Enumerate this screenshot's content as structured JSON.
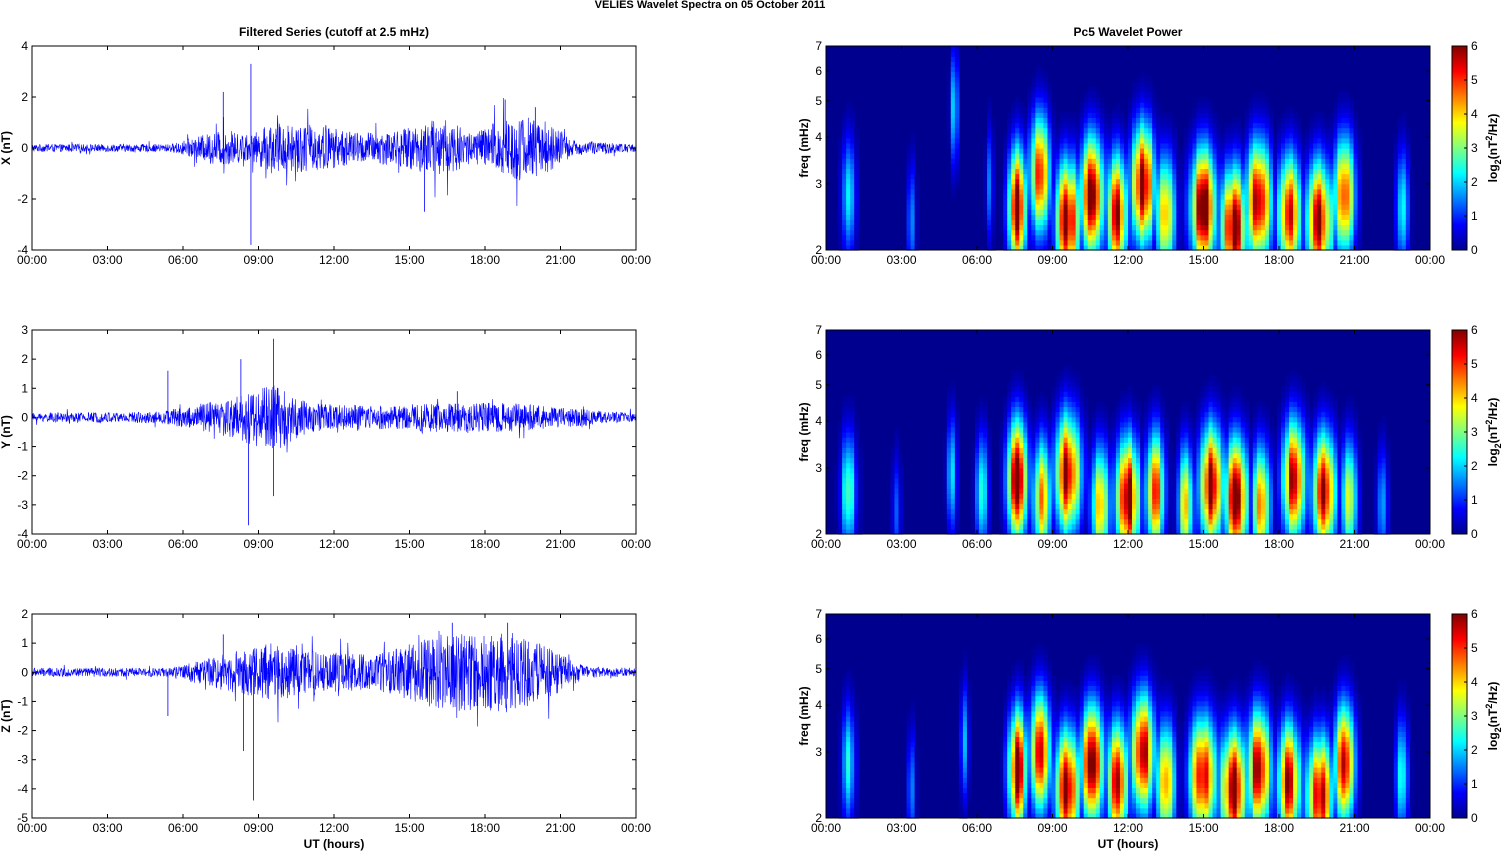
{
  "figure_title": "VELIES Wavelet Spectra on 05 October   2011",
  "chart_data": [
    {
      "type": "line",
      "title": "Filtered Series (cutoff at 2.5 mHz)",
      "ylabel": "X (nT)",
      "xlabel": "",
      "xlim": [
        "00:00",
        "24:00"
      ],
      "ylim": [
        -4,
        4
      ],
      "yticks": [
        "-4",
        "-2",
        "0",
        "2",
        "4"
      ],
      "xticks": [
        "00:00",
        "03:00",
        "06:00",
        "09:00",
        "12:00",
        "15:00",
        "18:00",
        "21:00",
        "00:00"
      ],
      "color": "#0000ff",
      "envelope": [
        {
          "t": 0.0,
          "amp": 0.15
        },
        {
          "t": 5.5,
          "amp": 0.15
        },
        {
          "t": 7.5,
          "amp": 0.7
        },
        {
          "t": 8.7,
          "amp": 0.5
        },
        {
          "t": 9.5,
          "amp": 1.0
        },
        {
          "t": 11.5,
          "amp": 0.9
        },
        {
          "t": 13.0,
          "amp": 0.6
        },
        {
          "t": 14.5,
          "amp": 0.7
        },
        {
          "t": 16.3,
          "amp": 1.2
        },
        {
          "t": 17.5,
          "amp": 0.6
        },
        {
          "t": 19.0,
          "amp": 1.3
        },
        {
          "t": 20.2,
          "amp": 1.2
        },
        {
          "t": 21.5,
          "amp": 0.3
        },
        {
          "t": 24.0,
          "amp": 0.15
        }
      ],
      "spikes": [
        {
          "t": 7.6,
          "y": 2.2
        },
        {
          "t": 8.7,
          "y": 3.3
        },
        {
          "t": 8.7,
          "y": -3.8
        },
        {
          "t": 15.6,
          "y": -2.5
        },
        {
          "t": 20.0,
          "y": 1.6
        },
        {
          "t": 18.8,
          "y": 1.9
        }
      ]
    },
    {
      "type": "line",
      "title": "",
      "ylabel": "Y (nT)",
      "xlabel": "",
      "xlim": [
        "00:00",
        "24:00"
      ],
      "ylim": [
        -4,
        3
      ],
      "yticks": [
        "-4",
        "-3",
        "-2",
        "-1",
        "0",
        "1",
        "2",
        "3"
      ],
      "xticks": [
        "00:00",
        "03:00",
        "06:00",
        "09:00",
        "12:00",
        "15:00",
        "18:00",
        "21:00",
        "00:00"
      ],
      "color": "#0000ff",
      "envelope": [
        {
          "t": 0.0,
          "amp": 0.15
        },
        {
          "t": 5.0,
          "amp": 0.2
        },
        {
          "t": 7.5,
          "amp": 0.6
        },
        {
          "t": 9.6,
          "amp": 1.2
        },
        {
          "t": 11.0,
          "amp": 0.5
        },
        {
          "t": 14.0,
          "amp": 0.4
        },
        {
          "t": 16.0,
          "amp": 0.5
        },
        {
          "t": 19.0,
          "amp": 0.5
        },
        {
          "t": 21.0,
          "amp": 0.35
        },
        {
          "t": 24.0,
          "amp": 0.15
        }
      ],
      "spikes": [
        {
          "t": 5.4,
          "y": 1.6
        },
        {
          "t": 8.6,
          "y": -3.7
        },
        {
          "t": 9.6,
          "y": 2.7
        },
        {
          "t": 9.6,
          "y": -2.7
        },
        {
          "t": 8.3,
          "y": 2.0
        },
        {
          "t": 16.9,
          "y": 0.9
        }
      ]
    },
    {
      "type": "line",
      "title": "",
      "ylabel": "Z (nT)",
      "xlabel": "UT (hours)",
      "xlim": [
        "00:00",
        "24:00"
      ],
      "ylim": [
        -5,
        2
      ],
      "yticks": [
        "-5",
        "-4",
        "-3",
        "-2",
        "-1",
        "0",
        "1",
        "2"
      ],
      "xticks": [
        "00:00",
        "03:00",
        "06:00",
        "09:00",
        "12:00",
        "15:00",
        "18:00",
        "21:00",
        "00:00"
      ],
      "color": "#0000ff",
      "envelope": [
        {
          "t": 0.0,
          "amp": 0.15
        },
        {
          "t": 5.5,
          "amp": 0.15
        },
        {
          "t": 7.5,
          "amp": 0.6
        },
        {
          "t": 9.5,
          "amp": 1.0
        },
        {
          "t": 11.5,
          "amp": 0.7
        },
        {
          "t": 13.5,
          "amp": 0.6
        },
        {
          "t": 16.3,
          "amp": 1.3
        },
        {
          "t": 19.0,
          "amp": 1.4
        },
        {
          "t": 20.5,
          "amp": 0.9
        },
        {
          "t": 22.0,
          "amp": 0.2
        },
        {
          "t": 24.0,
          "amp": 0.15
        }
      ],
      "spikes": [
        {
          "t": 5.4,
          "y": -1.5
        },
        {
          "t": 8.4,
          "y": -2.7
        },
        {
          "t": 8.8,
          "y": -4.4
        },
        {
          "t": 7.6,
          "y": 1.3
        },
        {
          "t": 16.7,
          "y": 1.7
        },
        {
          "t": 18.9,
          "y": 1.7
        }
      ]
    },
    {
      "type": "heatmap",
      "title": "Pc5 Wavelet Power",
      "ylabel": "freq (mHz)",
      "xlabel": "",
      "xlim": [
        "00:00",
        "24:00"
      ],
      "ylim": [
        2,
        7
      ],
      "yscale": "log",
      "yticks": [
        "2",
        "3",
        "4",
        "5",
        "6",
        "7"
      ],
      "xticks": [
        "00:00",
        "03:00",
        "06:00",
        "09:00",
        "12:00",
        "15:00",
        "18:00",
        "21:00",
        "00:00"
      ],
      "colorbar": {
        "label": "log2(nT^2/Hz)",
        "label_main": "log",
        "label_sub": "2",
        "label_rest": "(nT",
        "label_sup": "2",
        "label_end": "/Hz)",
        "range": [
          0,
          6
        ],
        "ticks": [
          "0",
          "1",
          "2",
          "3",
          "4",
          "5",
          "6"
        ]
      },
      "blobs": [
        {
          "t": 0.9,
          "f": 2.8,
          "p": 2.5,
          "w": 0.25
        },
        {
          "t": 3.4,
          "f": 2.4,
          "p": 1.8,
          "w": 0.15
        },
        {
          "t": 5.1,
          "f": 4.8,
          "p": 2.0,
          "w": 0.15
        },
        {
          "t": 6.5,
          "f": 3.0,
          "p": 1.5,
          "w": 0.15
        },
        {
          "t": 7.6,
          "f": 2.6,
          "p": 6,
          "w": 0.35
        },
        {
          "t": 8.5,
          "f": 3.2,
          "p": 5,
          "w": 0.4
        },
        {
          "t": 9.6,
          "f": 2.4,
          "p": 6,
          "w": 0.45
        },
        {
          "t": 10.6,
          "f": 2.8,
          "p": 6,
          "w": 0.45
        },
        {
          "t": 11.6,
          "f": 2.5,
          "p": 5.5,
          "w": 0.4
        },
        {
          "t": 12.6,
          "f": 3.0,
          "p": 6,
          "w": 0.45
        },
        {
          "t": 13.5,
          "f": 2.5,
          "p": 4.5,
          "w": 0.35
        },
        {
          "t": 15.0,
          "f": 2.6,
          "p": 6,
          "w": 0.5
        },
        {
          "t": 16.2,
          "f": 2.3,
          "p": 6,
          "w": 0.5
        },
        {
          "t": 17.2,
          "f": 2.7,
          "p": 6,
          "w": 0.45
        },
        {
          "t": 18.4,
          "f": 2.5,
          "p": 5.5,
          "w": 0.45
        },
        {
          "t": 19.6,
          "f": 2.4,
          "p": 6,
          "w": 0.5
        },
        {
          "t": 20.6,
          "f": 2.8,
          "p": 5.5,
          "w": 0.4
        },
        {
          "t": 22.9,
          "f": 2.6,
          "p": 2.5,
          "w": 0.25
        }
      ]
    },
    {
      "type": "heatmap",
      "title": "",
      "ylabel": "freq (mHz)",
      "xlabel": "",
      "xlim": [
        "00:00",
        "24:00"
      ],
      "ylim": [
        2,
        7
      ],
      "yscale": "log",
      "yticks": [
        "2",
        "3",
        "4",
        "5",
        "6",
        "7"
      ],
      "xticks": [
        "00:00",
        "03:00",
        "06:00",
        "09:00",
        "12:00",
        "15:00",
        "18:00",
        "21:00",
        "00:00"
      ],
      "colorbar": {
        "label": "log2(nT^2/Hz)",
        "label_main": "log",
        "label_sub": "2",
        "label_rest": "(nT",
        "label_sup": "2",
        "label_end": "/Hz)",
        "range": [
          0,
          6
        ],
        "ticks": [
          "0",
          "1",
          "2",
          "3",
          "4",
          "5",
          "6"
        ]
      },
      "blobs": [
        {
          "t": 0.9,
          "f": 2.6,
          "p": 2.8,
          "w": 0.3
        },
        {
          "t": 2.8,
          "f": 2.3,
          "p": 1.5,
          "w": 0.15
        },
        {
          "t": 5.0,
          "f": 2.9,
          "p": 2.0,
          "w": 0.2
        },
        {
          "t": 6.2,
          "f": 2.6,
          "p": 2.5,
          "w": 0.25
        },
        {
          "t": 7.6,
          "f": 2.8,
          "p": 6,
          "w": 0.4
        },
        {
          "t": 8.6,
          "f": 2.5,
          "p": 4.5,
          "w": 0.35
        },
        {
          "t": 9.6,
          "f": 2.9,
          "p": 6,
          "w": 0.5
        },
        {
          "t": 10.9,
          "f": 2.4,
          "p": 4.5,
          "w": 0.35
        },
        {
          "t": 12.0,
          "f": 2.5,
          "p": 6,
          "w": 0.45
        },
        {
          "t": 13.1,
          "f": 2.6,
          "p": 5.0,
          "w": 0.35
        },
        {
          "t": 14.3,
          "f": 2.4,
          "p": 4.0,
          "w": 0.3
        },
        {
          "t": 15.3,
          "f": 2.7,
          "p": 6,
          "w": 0.45
        },
        {
          "t": 16.3,
          "f": 2.5,
          "p": 6,
          "w": 0.45
        },
        {
          "t": 17.3,
          "f": 2.4,
          "p": 4.5,
          "w": 0.35
        },
        {
          "t": 18.6,
          "f": 2.8,
          "p": 6,
          "w": 0.45
        },
        {
          "t": 19.8,
          "f": 2.6,
          "p": 5.5,
          "w": 0.45
        },
        {
          "t": 20.8,
          "f": 2.5,
          "p": 4.0,
          "w": 0.3
        },
        {
          "t": 22.1,
          "f": 2.4,
          "p": 2.0,
          "w": 0.2
        }
      ]
    },
    {
      "type": "heatmap",
      "title": "",
      "ylabel": "freq (mHz)",
      "xlabel": "UT (hours)",
      "xlim": [
        "00:00",
        "24:00"
      ],
      "ylim": [
        2,
        7
      ],
      "yscale": "log",
      "yticks": [
        "2",
        "3",
        "4",
        "5",
        "6",
        "7"
      ],
      "xticks": [
        "00:00",
        "03:00",
        "06:00",
        "09:00",
        "12:00",
        "15:00",
        "18:00",
        "21:00",
        "00:00"
      ],
      "colorbar": {
        "label": "log2(nT^2/Hz)",
        "label_main": "log",
        "label_sub": "2",
        "label_rest": "(nT",
        "label_sup": "2",
        "label_end": "/Hz)",
        "range": [
          0,
          6
        ],
        "ticks": [
          "0",
          "1",
          "2",
          "3",
          "4",
          "5",
          "6"
        ]
      },
      "blobs": [
        {
          "t": 0.9,
          "f": 2.8,
          "p": 2.5,
          "w": 0.25
        },
        {
          "t": 3.4,
          "f": 2.4,
          "p": 1.8,
          "w": 0.15
        },
        {
          "t": 5.5,
          "f": 3.2,
          "p": 2.0,
          "w": 0.15
        },
        {
          "t": 7.6,
          "f": 2.7,
          "p": 6,
          "w": 0.35
        },
        {
          "t": 8.5,
          "f": 3.0,
          "p": 5,
          "w": 0.4
        },
        {
          "t": 9.6,
          "f": 2.4,
          "p": 6,
          "w": 0.45
        },
        {
          "t": 10.6,
          "f": 2.8,
          "p": 6,
          "w": 0.45
        },
        {
          "t": 11.6,
          "f": 2.5,
          "p": 5.5,
          "w": 0.4
        },
        {
          "t": 12.6,
          "f": 3.0,
          "p": 6,
          "w": 0.45
        },
        {
          "t": 13.5,
          "f": 2.5,
          "p": 4.5,
          "w": 0.35
        },
        {
          "t": 15.0,
          "f": 2.6,
          "p": 6,
          "w": 0.5
        },
        {
          "t": 16.2,
          "f": 2.4,
          "p": 6,
          "w": 0.5
        },
        {
          "t": 17.2,
          "f": 2.7,
          "p": 6,
          "w": 0.45
        },
        {
          "t": 18.4,
          "f": 2.5,
          "p": 5.5,
          "w": 0.45
        },
        {
          "t": 19.6,
          "f": 2.3,
          "p": 6,
          "w": 0.5
        },
        {
          "t": 20.6,
          "f": 2.8,
          "p": 5.5,
          "w": 0.4
        },
        {
          "t": 22.9,
          "f": 2.6,
          "p": 2.5,
          "w": 0.25
        }
      ]
    }
  ]
}
